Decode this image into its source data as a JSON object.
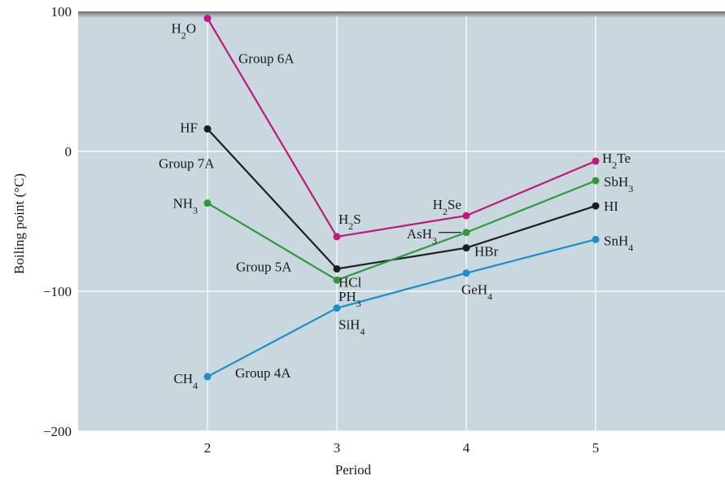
{
  "chart_data": {
    "type": "line",
    "title": "",
    "xlabel": "Period",
    "ylabel": "Boiling point (°C)",
    "xlim": [
      1,
      6
    ],
    "ylim": [
      -200,
      100
    ],
    "x_ticks": [
      2,
      3,
      4,
      5
    ],
    "y_ticks": [
      100,
      0,
      -100,
      -200
    ],
    "y_tick_labels": [
      "100",
      "0",
      "−100",
      "−200"
    ],
    "grid": true,
    "background": "#c9d7df",
    "series": [
      {
        "name": "Group 6A",
        "color": "#c2177a",
        "points": [
          {
            "x": 2,
            "y": 95,
            "label": "H₂O"
          },
          {
            "x": 3,
            "y": -61,
            "label": "H₂S"
          },
          {
            "x": 4,
            "y": -46,
            "label": "H₂Se"
          },
          {
            "x": 5,
            "y": -7,
            "label": "H₂Te"
          }
        ]
      },
      {
        "name": "Group 7A",
        "color": "#1e1e1e",
        "points": [
          {
            "x": 2,
            "y": 16,
            "label": "HF"
          },
          {
            "x": 3,
            "y": -84,
            "label": "HCl"
          },
          {
            "x": 4,
            "y": -69,
            "label": "HBr"
          },
          {
            "x": 5,
            "y": -39,
            "label": "HI"
          }
        ]
      },
      {
        "name": "Group 5A",
        "color": "#2f9a3d",
        "points": [
          {
            "x": 2,
            "y": -37,
            "label": "NH₃"
          },
          {
            "x": 3,
            "y": -92,
            "label": "PH₃"
          },
          {
            "x": 4,
            "y": -58,
            "label": "AsH₃"
          },
          {
            "x": 5,
            "y": -21,
            "label": "SbH₃"
          }
        ]
      },
      {
        "name": "Group 4A",
        "color": "#1b8fc7",
        "points": [
          {
            "x": 2,
            "y": -161,
            "label": "CH₄"
          },
          {
            "x": 3,
            "y": -112,
            "label": "SiH₄"
          },
          {
            "x": 4,
            "y": -87,
            "label": "GeH₄"
          },
          {
            "x": 5,
            "y": -63,
            "label": "SnH₄"
          }
        ]
      }
    ]
  }
}
